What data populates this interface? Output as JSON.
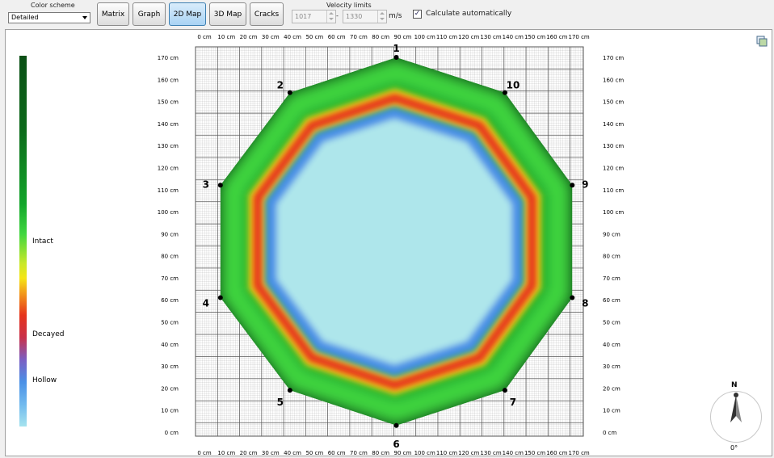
{
  "toolbar": {
    "color_scheme_label": "Color scheme",
    "color_scheme_value": "Detailed",
    "buttons": {
      "matrix": "Matrix",
      "graph": "Graph",
      "map2d": "2D Map",
      "map3d": "3D Map",
      "cracks": "Cracks"
    },
    "velocity_label": "Velocity limits",
    "velocity_min": "1017",
    "velocity_sep": "-",
    "velocity_max": "1330",
    "velocity_unit": "m/s",
    "calc_auto_label": "Calculate automatically",
    "calc_auto_checked": true
  },
  "legend": {
    "intact": "Intact",
    "decayed": "Decayed",
    "hollow": "Hollow"
  },
  "axes": {
    "x_ticks": [
      "0 cm",
      "10 cm",
      "20 cm",
      "30 cm",
      "40 cm",
      "50 cm",
      "60 cm",
      "70 cm",
      "80 cm",
      "90 cm",
      "100 cm",
      "110 cm",
      "120 cm",
      "130 cm",
      "140 cm",
      "150 cm",
      "160 cm",
      "170 cm"
    ],
    "y_ticks": [
      "170 cm",
      "160 cm",
      "150 cm",
      "140 cm",
      "130 cm",
      "120 cm",
      "110 cm",
      "100 cm",
      "90 cm",
      "80 cm",
      "70 cm",
      "60 cm",
      "50 cm",
      "40 cm",
      "30 cm",
      "20 cm",
      "10 cm",
      "0 cm"
    ]
  },
  "sensors": [
    "1",
    "2",
    "3",
    "4",
    "5",
    "6",
    "7",
    "8",
    "9",
    "10"
  ],
  "compass": {
    "north": "N",
    "angle": "0°"
  },
  "colors": {
    "intact_dark": "#0b4f16",
    "intact": "#3fd63f",
    "decayed": "#e6341c",
    "hollow": "#4a90e6",
    "hollow_core": "#aee6eb",
    "active_button": "#a9d3f4"
  }
}
